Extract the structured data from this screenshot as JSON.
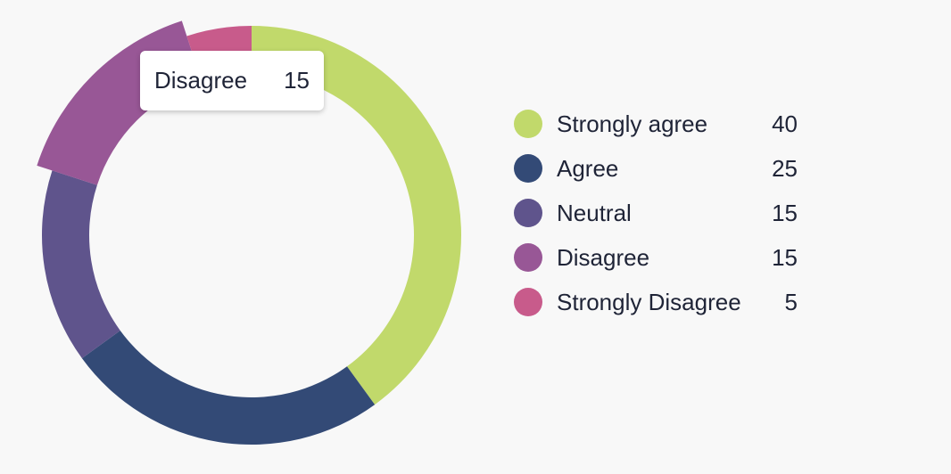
{
  "chart_data": {
    "type": "pie",
    "variant": "donut",
    "categories": [
      "Strongly agree",
      "Agree",
      "Neutral",
      "Disagree",
      "Strongly Disagree"
    ],
    "values": [
      40,
      25,
      15,
      15,
      5
    ],
    "colors": [
      "#c1d96b",
      "#334a76",
      "#5f548c",
      "#985796",
      "#c85b8b"
    ],
    "highlighted": "Disagree",
    "legend_position": "right",
    "tooltip": {
      "label": "Disagree",
      "value": "15"
    }
  },
  "legend": [
    {
      "label": "Strongly agree",
      "value": "40",
      "color": "#c1d96b"
    },
    {
      "label": "Agree",
      "value": "25",
      "color": "#334a76"
    },
    {
      "label": "Neutral",
      "value": "15",
      "color": "#5f548c"
    },
    {
      "label": "Disagree",
      "value": "15",
      "color": "#985796"
    },
    {
      "label": "Strongly Disagree",
      "value": "5",
      "color": "#c85b8b"
    }
  ]
}
